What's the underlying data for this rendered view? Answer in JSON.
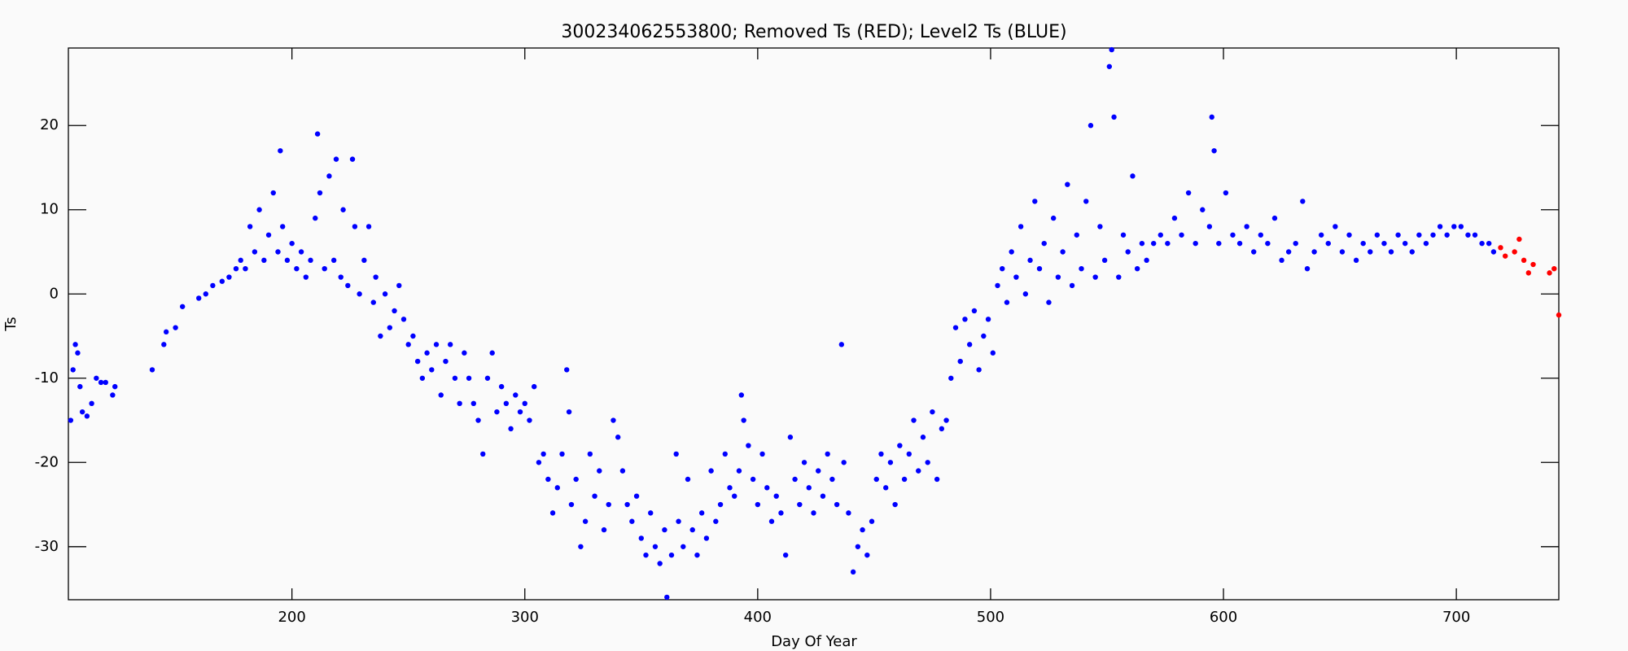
{
  "chart_data": {
    "type": "scatter",
    "title": "300234062553800; Removed Ts (RED); Level2 Ts (BLUE)",
    "xlabel": "Day Of Year",
    "ylabel": "Ts",
    "xlim": [
      104,
      744
    ],
    "ylim": [
      -36.3,
      29.2
    ],
    "xticks": [
      200,
      300,
      400,
      500,
      600,
      700
    ],
    "yticks": [
      -30,
      -20,
      -10,
      0,
      10,
      20
    ],
    "series": [
      {
        "color": "#0000ff",
        "x": [
          105,
          106,
          107,
          108,
          109,
          110,
          112,
          114,
          116,
          118,
          120,
          123,
          124,
          140,
          145,
          146,
          150,
          153,
          160,
          163,
          166,
          170,
          173,
          176,
          178,
          180,
          182,
          184,
          186,
          188,
          190,
          192,
          194,
          195,
          196,
          198,
          200,
          202,
          204,
          206,
          208,
          210,
          211,
          212,
          214,
          216,
          218,
          219,
          221,
          222,
          224,
          226,
          227,
          229,
          231,
          233,
          235,
          236,
          238,
          240,
          242,
          244,
          246,
          248,
          250,
          252,
          254,
          256,
          258,
          260,
          262,
          264,
          266,
          268,
          270,
          272,
          274,
          276,
          278,
          280,
          282,
          284,
          286,
          288,
          290,
          292,
          294,
          296,
          298,
          300,
          302,
          304,
          306,
          308,
          310,
          312,
          314,
          316,
          318,
          319,
          320,
          322,
          324,
          326,
          328,
          330,
          332,
          334,
          336,
          338,
          340,
          342,
          344,
          346,
          348,
          350,
          352,
          354,
          356,
          358,
          360,
          361,
          363,
          365,
          366,
          368,
          370,
          372,
          374,
          376,
          378,
          380,
          382,
          384,
          386,
          388,
          390,
          392,
          393,
          394,
          396,
          398,
          400,
          402,
          404,
          406,
          408,
          410,
          412,
          414,
          416,
          418,
          420,
          422,
          424,
          426,
          428,
          430,
          432,
          434,
          436,
          437,
          439,
          441,
          443,
          445,
          447,
          449,
          451,
          453,
          455,
          457,
          459,
          461,
          463,
          465,
          467,
          469,
          471,
          473,
          475,
          477,
          479,
          481,
          483,
          485,
          487,
          489,
          491,
          493,
          495,
          497,
          499,
          501,
          503,
          505,
          507,
          509,
          511,
          513,
          515,
          517,
          519,
          521,
          523,
          525,
          527,
          529,
          531,
          533,
          535,
          537,
          539,
          541,
          543,
          545,
          547,
          549,
          551,
          552,
          553,
          555,
          557,
          559,
          561,
          563,
          565,
          567,
          570,
          573,
          576,
          579,
          582,
          585,
          588,
          591,
          594,
          595,
          596,
          598,
          601,
          604,
          607,
          610,
          613,
          616,
          619,
          622,
          625,
          628,
          631,
          634,
          636,
          639,
          642,
          645,
          648,
          651,
          654,
          657,
          660,
          663,
          666,
          669,
          672,
          675,
          678,
          681,
          684,
          687,
          690,
          693,
          696,
          699,
          702,
          705,
          708,
          711,
          714,
          716
        ],
        "values": [
          -15,
          -9,
          -6,
          -7,
          -11,
          -14,
          -14.5,
          -13,
          -10,
          -10.5,
          -10.5,
          -12,
          -11,
          -9,
          -6,
          -4.5,
          -4,
          -1.5,
          -0.5,
          0,
          1,
          1.5,
          2,
          3,
          4,
          3,
          8,
          5,
          10,
          4,
          7,
          12,
          5,
          17,
          8,
          4,
          6,
          3,
          5,
          2,
          4,
          9,
          19,
          12,
          3,
          14,
          4,
          16,
          2,
          10,
          1,
          16,
          8,
          0,
          4,
          8,
          -1,
          2,
          -5,
          0,
          -4,
          -2,
          1,
          -3,
          -6,
          -5,
          -8,
          -10,
          -7,
          -9,
          -6,
          -12,
          -8,
          -6,
          -10,
          -13,
          -7,
          -10,
          -13,
          -15,
          -19,
          -10,
          -7,
          -14,
          -11,
          -13,
          -16,
          -12,
          -14,
          -13,
          -15,
          -11,
          -20,
          -19,
          -22,
          -26,
          -23,
          -19,
          -9,
          -14,
          -25,
          -22,
          -30,
          -27,
          -19,
          -24,
          -21,
          -28,
          -25,
          -15,
          -17,
          -21,
          -25,
          -27,
          -24,
          -29,
          -31,
          -26,
          -30,
          -32,
          -28,
          -36,
          -31,
          -19,
          -27,
          -30,
          -22,
          -28,
          -31,
          -26,
          -29,
          -21,
          -27,
          -25,
          -19,
          -23,
          -24,
          -21,
          -12,
          -15,
          -18,
          -22,
          -25,
          -19,
          -23,
          -27,
          -24,
          -26,
          -31,
          -17,
          -22,
          -25,
          -20,
          -23,
          -26,
          -21,
          -24,
          -19,
          -22,
          -25,
          -6,
          -20,
          -26,
          -33,
          -30,
          -28,
          -31,
          -27,
          -22,
          -19,
          -23,
          -20,
          -25,
          -18,
          -22,
          -19,
          -15,
          -21,
          -17,
          -20,
          -14,
          -22,
          -16,
          -15,
          -10,
          -4,
          -8,
          -3,
          -6,
          -2,
          -9,
          -5,
          -3,
          -7,
          1,
          3,
          -1,
          5,
          2,
          8,
          0,
          4,
          11,
          3,
          6,
          -1,
          9,
          2,
          5,
          13,
          1,
          7,
          3,
          11,
          20,
          2,
          8,
          4,
          27,
          29,
          21,
          2,
          7,
          5,
          14,
          3,
          6,
          4,
          6,
          7,
          6,
          9,
          7,
          12,
          6,
          10,
          8,
          21,
          17,
          6,
          12,
          7,
          6,
          8,
          5,
          7,
          6,
          9,
          4,
          5,
          6,
          11,
          3,
          5,
          7,
          6,
          8,
          5,
          7,
          4,
          6,
          5,
          7,
          6,
          5,
          7,
          6,
          5,
          7,
          6,
          7,
          8,
          7,
          8,
          8,
          7,
          7,
          6,
          6,
          5
        ]
      },
      {
        "color": "#ff0000",
        "x": [
          719,
          721,
          725,
          727,
          729,
          731,
          733,
          740,
          742,
          744
        ],
        "values": [
          5.5,
          4.5,
          5,
          6.5,
          4,
          2.5,
          3.5,
          2.5,
          3,
          -2.5
        ]
      }
    ]
  }
}
